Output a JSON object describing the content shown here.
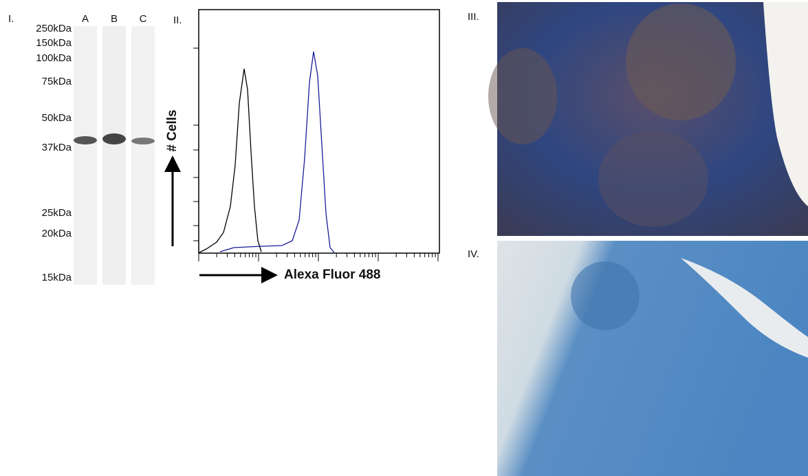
{
  "panel_1": {
    "label": "I.",
    "lanes": [
      "A",
      "B",
      "C"
    ],
    "markers": [
      "250kDa",
      "150kDa",
      "100kDa",
      "75kDa",
      "50kDa",
      "37kDa",
      "25kDa",
      "20kDa",
      "15kDa"
    ]
  },
  "panel_2": {
    "label": "II.",
    "y_axis_label": "# Cells",
    "x_axis_label": "Alexa Fluor 488"
  },
  "panel_3": {
    "label": "III."
  },
  "panel_4": {
    "label": "IV."
  }
}
